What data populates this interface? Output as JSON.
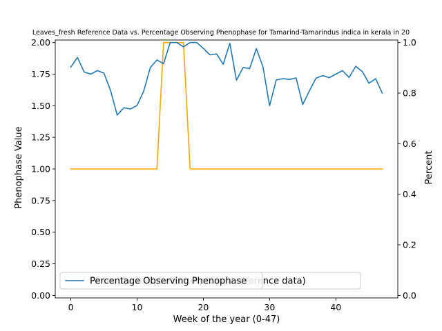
{
  "chart_data": {
    "type": "line",
    "title": "Leaves_fresh Reference Data vs. Percentage Observing Phenophase for Tamarind-Tamarindus indica in kerala in 20",
    "xlabel": "Week of the year (0-47)",
    "ylabel_left": "Phenophase Value",
    "ylabel_right": "Percent",
    "xlim": [
      -2.35,
      49.35
    ],
    "ylim_left": [
      -0.02,
      2.02
    ],
    "ylim_right": [
      -0.01,
      1.01
    ],
    "x_ticks": [
      0,
      10,
      20,
      30,
      40
    ],
    "y_ticks_left": [
      0.0,
      0.25,
      0.5,
      0.75,
      1.0,
      1.25,
      1.5,
      1.75,
      2.0
    ],
    "y_ticks_right": [
      0.0,
      0.2,
      0.4,
      0.6,
      0.8,
      1.0
    ],
    "y_tick_labels_left": [
      "0.00",
      "0.25",
      "0.50",
      "0.75",
      "1.00",
      "1.25",
      "1.50",
      "1.75",
      "2.00"
    ],
    "y_tick_labels_right": [
      "0.0",
      "0.2",
      "0.4",
      "0.6",
      "0.8",
      "1.0"
    ],
    "legend": {
      "placement": "lower-left",
      "entries": [
        {
          "label": "Percentage Observing Phenophase",
          "color": "#1f77b4"
        },
        {
          "label": "Phenophase Value (interpolated reference data)",
          "color": "#ffa500"
        }
      ]
    },
    "series": [
      {
        "name": "Phenophase Value (interpolated reference data)",
        "axis": "left",
        "color": "#ffa500",
        "x": [
          0,
          1,
          2,
          3,
          4,
          5,
          6,
          7,
          8,
          9,
          10,
          11,
          12,
          13,
          14,
          15,
          16,
          17,
          18,
          19,
          20,
          21,
          22,
          23,
          24,
          25,
          26,
          27,
          28,
          29,
          30,
          31,
          32,
          33,
          34,
          35,
          36,
          37,
          38,
          39,
          40,
          41,
          42,
          43,
          44,
          45,
          46,
          47
        ],
        "y": [
          1,
          1,
          1,
          1,
          1,
          1,
          1,
          1,
          1,
          1,
          1,
          1,
          1,
          1,
          2,
          2,
          2,
          2,
          1,
          1,
          1,
          1,
          1,
          1,
          1,
          1,
          1,
          1,
          1,
          1,
          1,
          1,
          1,
          1,
          1,
          1,
          1,
          1,
          1,
          1,
          1,
          1,
          1,
          1,
          1,
          1,
          1,
          1
        ]
      },
      {
        "name": "Percentage Observing Phenophase",
        "axis": "right",
        "color": "#1f77b4",
        "x": [
          0,
          1,
          2,
          3,
          4,
          5,
          6,
          7,
          8,
          9,
          10,
          11,
          12,
          13,
          14,
          15,
          16,
          17,
          18,
          19,
          20,
          21,
          22,
          23,
          24,
          25,
          26,
          27,
          28,
          29,
          30,
          31,
          32,
          33,
          34,
          35,
          36,
          37,
          38,
          39,
          40,
          41,
          42,
          43,
          44,
          45,
          46,
          47
        ],
        "y": [
          0.903,
          0.941,
          0.884,
          0.875,
          0.889,
          0.879,
          0.81,
          0.713,
          0.742,
          0.737,
          0.751,
          0.808,
          0.901,
          0.931,
          0.916,
          1.0,
          1.0,
          0.983,
          1.0,
          1.0,
          0.977,
          0.951,
          0.955,
          0.914,
          0.997,
          0.851,
          0.901,
          0.897,
          0.976,
          0.904,
          0.75,
          0.852,
          0.857,
          0.854,
          0.86,
          0.755,
          0.808,
          0.859,
          0.869,
          0.861,
          0.875,
          0.889,
          0.862,
          0.906,
          0.885,
          0.839,
          0.857,
          0.8
        ]
      }
    ]
  }
}
